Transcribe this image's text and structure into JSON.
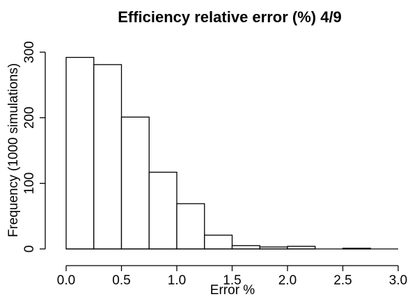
{
  "chart_data": {
    "type": "histogram",
    "title": "Efficiency relative error (%) 4/9",
    "x_label": "Error %",
    "y_label": "Frequency (1000 simulations)",
    "bins": [
      0,
      0.25,
      0.5,
      0.75,
      1,
      1.25,
      1.5,
      1.75,
      2,
      2.25,
      2.5,
      2.75,
      3
    ],
    "values": [
      292,
      281,
      201,
      117,
      69,
      21,
      5,
      3,
      4,
      0,
      1,
      0
    ],
    "color": "#ffffff",
    "xlim": [
      0,
      3
    ],
    "xticks": [
      {
        "value": 0,
        "label": "0.0"
      },
      {
        "value": 0.5,
        "label": "0.5"
      },
      {
        "value": 1,
        "label": "1.0"
      },
      {
        "value": 1.5,
        "label": "1.5"
      },
      {
        "value": 2,
        "label": "2.0"
      },
      {
        "value": 2.5,
        "label": "2.5"
      },
      {
        "value": 3,
        "label": "3.0"
      }
    ],
    "ylim": [
      0,
      300
    ],
    "yticks": [
      0,
      100,
      200,
      300
    ]
  }
}
